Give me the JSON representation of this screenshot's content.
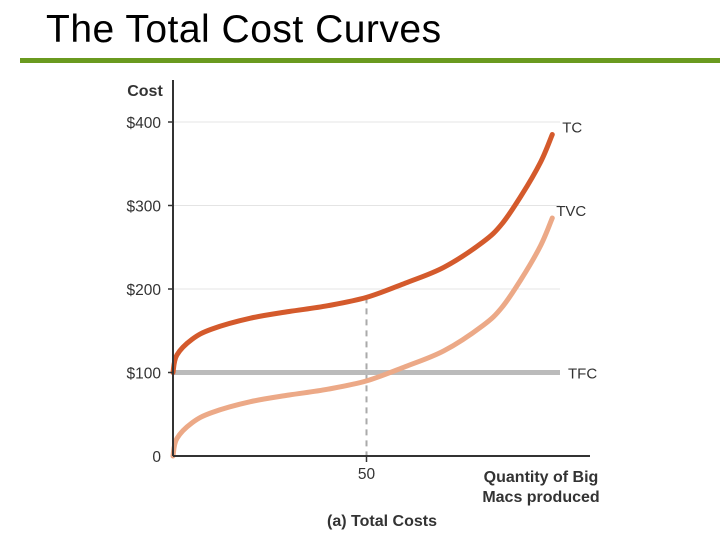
{
  "slide": {
    "title": "The Total Cost Curves",
    "accent_color": "#6a9a1f"
  },
  "chart_data": {
    "type": "line",
    "title": "(a) Total Costs",
    "ylabel": "Cost",
    "xlabel": "Quantity of Big Macs produced",
    "xlabel_lines": [
      "Quantity of Big",
      "Macs produced"
    ],
    "xlim": [
      0,
      100
    ],
    "ylim": [
      0,
      400
    ],
    "yticks": [
      {
        "value": 0,
        "label": "0"
      },
      {
        "value": 100,
        "label": "$100"
      },
      {
        "value": 200,
        "label": "$200"
      },
      {
        "value": 300,
        "label": "$300"
      },
      {
        "value": 400,
        "label": "$400"
      }
    ],
    "xticks": [
      {
        "value": 50,
        "label": "50"
      }
    ],
    "grid": true,
    "reference_x": 50,
    "series": [
      {
        "name": "TC",
        "color": "#d45a2c",
        "x": [
          0,
          1,
          5,
          10,
          20,
          30,
          40,
          50,
          60,
          70,
          80,
          85,
          90,
          95,
          98
        ],
        "y": [
          100,
          121,
          140,
          152,
          165,
          173,
          180,
          190,
          207,
          226,
          256,
          278,
          312,
          352,
          385
        ]
      },
      {
        "name": "TVC",
        "color": "#eca987",
        "x": [
          0,
          1,
          5,
          10,
          20,
          30,
          40,
          50,
          60,
          70,
          80,
          85,
          90,
          95,
          98
        ],
        "y": [
          0,
          21,
          40,
          52,
          65,
          73,
          80,
          90,
          107,
          126,
          156,
          178,
          212,
          252,
          285
        ]
      },
      {
        "name": "TFC",
        "color": "#bbbbbb",
        "x": [
          0,
          100
        ],
        "y": [
          100,
          100
        ]
      }
    ]
  }
}
